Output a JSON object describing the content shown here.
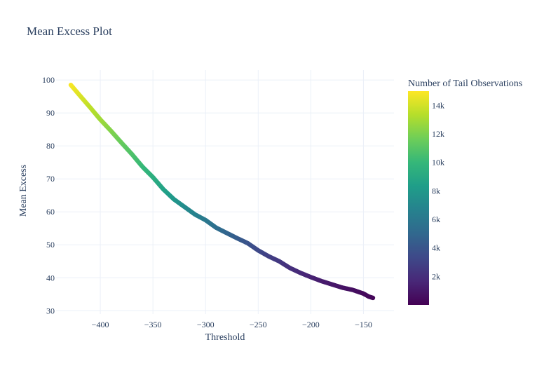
{
  "chart_data": {
    "type": "scatter",
    "title": "Mean Excess Plot",
    "xlabel": "Threshold",
    "ylabel": "Mean Excess",
    "xlim": [
      -442,
      -121
    ],
    "ylim": [
      29,
      103
    ],
    "x_ticks": [
      -400,
      -350,
      -300,
      -250,
      -200,
      -150
    ],
    "x_tick_labels": [
      "−400",
      "−350",
      "−300",
      "−250",
      "−200",
      "−150"
    ],
    "y_ticks": [
      30,
      40,
      50,
      60,
      70,
      80,
      90,
      100
    ],
    "y_tick_labels": [
      "30",
      "40",
      "50",
      "60",
      "70",
      "80",
      "90",
      "100"
    ],
    "colorbar": {
      "title": "Number of Tail Observations",
      "range": [
        0,
        15000
      ],
      "ticks": [
        2000,
        4000,
        6000,
        8000,
        10000,
        12000,
        14000
      ],
      "tick_labels": [
        "2k",
        "4k",
        "6k",
        "8k",
        "10k",
        "12k",
        "14k"
      ],
      "colorscale": "Viridis",
      "colors": [
        "#440154",
        "#482878",
        "#3e4989",
        "#31688e",
        "#26828e",
        "#1f9e89",
        "#35b779",
        "#6ece58",
        "#b5de2b",
        "#fde725"
      ]
    },
    "series": [
      {
        "name": "mean excess",
        "x": [
          -428,
          -420,
          -410,
          -400,
          -390,
          -380,
          -370,
          -360,
          -350,
          -340,
          -330,
          -320,
          -310,
          -300,
          -290,
          -280,
          -270,
          -260,
          -250,
          -240,
          -230,
          -220,
          -210,
          -200,
          -190,
          -180,
          -170,
          -160,
          -150,
          -145,
          -141
        ],
        "y": [
          98.5,
          95.5,
          91.8,
          88.0,
          84.6,
          81.0,
          77.5,
          73.7,
          70.5,
          66.8,
          63.8,
          61.5,
          59.2,
          57.5,
          55.2,
          53.6,
          52.0,
          50.5,
          48.3,
          46.5,
          45.0,
          43.0,
          41.5,
          40.2,
          39.0,
          38.0,
          37.0,
          36.3,
          35.2,
          34.3,
          33.9
        ],
        "counts": [
          14900,
          14300,
          13600,
          12900,
          12200,
          11500,
          10800,
          10100,
          9400,
          8700,
          8000,
          7300,
          6700,
          6100,
          5500,
          4900,
          4400,
          3900,
          3400,
          2900,
          2500,
          2100,
          1800,
          1500,
          1200,
          1000,
          800,
          600,
          400,
          300,
          250
        ]
      }
    ]
  }
}
